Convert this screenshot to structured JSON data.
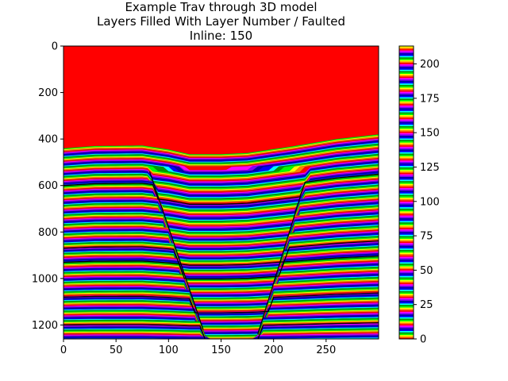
{
  "chart_data": {
    "type": "heatmap",
    "title_lines": [
      "Example Trav through 3D model",
      "Layers Filled With Layer Number / Faulted",
      "Inline: 150"
    ],
    "xlabel": "",
    "ylabel": "",
    "xlim": [
      0,
      300
    ],
    "ylim": [
      1260,
      0
    ],
    "x_ticks": [
      0,
      50,
      100,
      150,
      200,
      250
    ],
    "y_ticks": [
      0,
      200,
      400,
      600,
      800,
      1000,
      1200
    ],
    "colorbar": {
      "range": [
        0,
        213
      ],
      "ticks": [
        0,
        25,
        50,
        75,
        100,
        125,
        150,
        175,
        200
      ],
      "colormap": "repeating spectral (red-yellow-green-blue-violet)"
    },
    "horizon_top": [
      [
        0,
        440
      ],
      [
        30,
        430
      ],
      [
        75,
        428
      ],
      [
        100,
        445
      ],
      [
        120,
        465
      ],
      [
        150,
        465
      ],
      [
        175,
        460
      ],
      [
        220,
        430
      ],
      [
        260,
        400
      ],
      [
        300,
        380
      ]
    ],
    "background_color": "#ff0000",
    "layer_count": 213,
    "faults": [
      {
        "x_top": 82,
        "x_bottom": 133,
        "depth_top": 540,
        "depth_bottom": 1220
      },
      {
        "x_top": 228,
        "x_bottom": 185,
        "depth_top": 610,
        "depth_bottom": 1240
      }
    ],
    "marker_horizons_depth": [
      600,
      870,
      930,
      1080,
      1200
    ]
  }
}
